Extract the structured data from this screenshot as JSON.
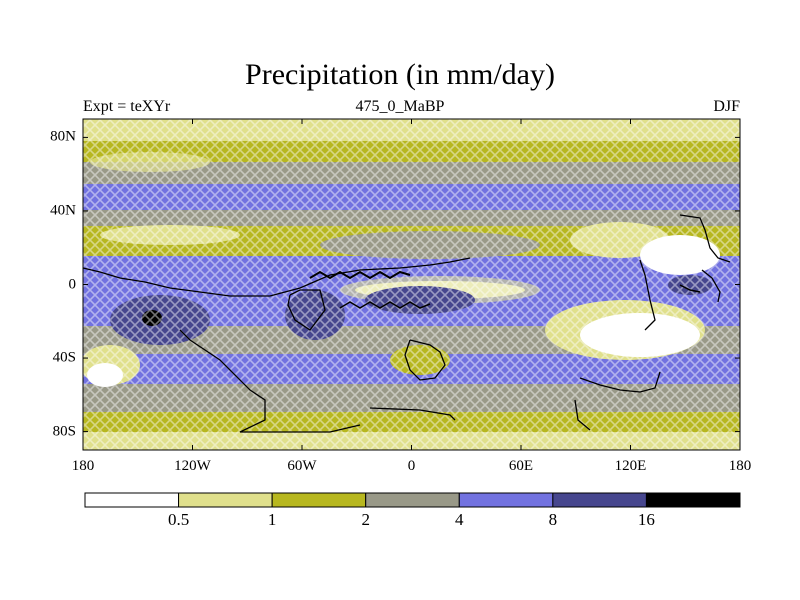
{
  "title": "Precipitation (in mm/day)",
  "left_label": "Expt = teXYr",
  "center_label": "475_0_MaBP",
  "right_label": "DJF",
  "lat_axis": {
    "ticks": [
      {
        "value": 80,
        "label": "80N"
      },
      {
        "value": 40,
        "label": "40N"
      },
      {
        "value": 0,
        "label": "0"
      },
      {
        "value": -40,
        "label": "40S"
      },
      {
        "value": -80,
        "label": "80S"
      }
    ]
  },
  "lon_axis": {
    "ticks": [
      {
        "value": -180,
        "label": "180"
      },
      {
        "value": -120,
        "label": "120W"
      },
      {
        "value": -60,
        "label": "60W"
      },
      {
        "value": 0,
        "label": "0"
      },
      {
        "value": 60,
        "label": "60E"
      },
      {
        "value": 120,
        "label": "120E"
      },
      {
        "value": 180,
        "label": "180"
      }
    ]
  },
  "colorbar": {
    "levels": [
      0.5,
      1,
      2,
      4,
      8,
      16
    ],
    "labels": [
      "0.5",
      "1",
      "2",
      "4",
      "8",
      "16"
    ],
    "colors": [
      "#ffffff",
      "#e0e08c",
      "#b7b71f",
      "#999988",
      "#7272e0",
      "#46468e",
      "#000000"
    ]
  },
  "map_colors": {
    "white": "#ffffff",
    "pale_yellow": "#e0e08c",
    "olive": "#b7b71f",
    "grey": "#999988",
    "blue": "#7272e0",
    "dark_blue": "#46468e",
    "coastline": "#000000"
  }
}
